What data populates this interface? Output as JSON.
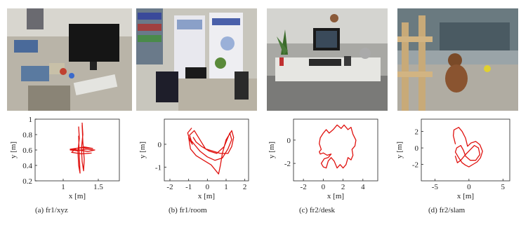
{
  "figure": {
    "panels": [
      {
        "id": "a",
        "caption": "(a) fr1/xyz",
        "chart_data": {
          "type": "line",
          "xlabel": "x [m]",
          "ylabel": "y [m]",
          "xlim": [
            0.6,
            1.8
          ],
          "ylim": [
            0.2,
            1.0
          ],
          "xticks": [
            1,
            1.5
          ],
          "yticks": [
            0.2,
            0.4,
            0.6,
            0.8,
            1
          ],
          "xtick_labels": [
            "1",
            "1.5"
          ],
          "ytick_labels": [
            "0.2",
            "0.4",
            "0.6",
            "0.8",
            "1"
          ],
          "series": [
            {
              "color": "#e0120f",
              "x": [
                1.1,
                1.2,
                1.32,
                1.45,
                1.35,
                1.22,
                1.1,
                1.25,
                1.42,
                1.3,
                1.18,
                1.12,
                1.26,
                1.4
              ],
              "y": [
                0.6,
                0.59,
                0.61,
                0.6,
                0.58,
                0.6,
                0.61,
                0.63,
                0.62,
                0.64,
                0.62,
                0.57,
                0.55,
                0.56
              ]
            },
            {
              "color": "#e0120f",
              "x": [
                1.27,
                1.28,
                1.26,
                1.27,
                1.29,
                1.3,
                1.28,
                1.27
              ],
              "y": [
                0.95,
                0.8,
                0.62,
                0.45,
                0.33,
                0.48,
                0.7,
                0.92
              ]
            },
            {
              "color": "#e0120f",
              "x": [
                1.22,
                1.23,
                1.21,
                1.22,
                1.24,
                1.23,
                1.22
              ],
              "y": [
                0.9,
                0.75,
                0.58,
                0.4,
                0.3,
                0.52,
                0.78
              ]
            }
          ]
        }
      },
      {
        "id": "b",
        "caption": "(b) fr1/room",
        "chart_data": {
          "type": "line",
          "xlabel": "x [m]",
          "ylabel": "y [m]",
          "xlim": [
            -2.3,
            2.2
          ],
          "ylim": [
            -1.6,
            1.1
          ],
          "xticks": [
            -2,
            -1,
            0,
            1,
            2
          ],
          "yticks": [
            -1,
            0
          ],
          "xtick_labels": [
            "-2",
            "-1",
            "0",
            "1",
            "2"
          ],
          "ytick_labels": [
            "-1",
            "0"
          ],
          "series": [
            {
              "color": "#e0120f",
              "x": [
                -0.85,
                -1.05,
                -0.95,
                -0.8,
                -0.95,
                -0.7,
                -0.4,
                -0.1,
                0.3,
                0.7,
                1.1,
                1.3,
                1.4,
                1.3,
                1.0,
                0.8,
                0.7,
                0.6,
                0.2,
                -0.2,
                -0.6,
                -0.9,
                -1.0,
                -0.8,
                -0.4,
                0.0,
                0.4,
                0.8,
                1.1,
                1.3,
                1.2,
                0.9,
                0.5,
                0.1,
                -0.3,
                -0.6,
                -0.75
              ],
              "y": [
                0.7,
                0.5,
                0.2,
                0.0,
                0.4,
                0.6,
                0.2,
                -0.2,
                -0.3,
                -0.4,
                -0.4,
                -0.1,
                0.3,
                0.6,
                0.2,
                -0.4,
                -0.9,
                -1.3,
                -0.9,
                -0.7,
                -0.5,
                -0.2,
                0.3,
                0.1,
                -0.3,
                -0.55,
                -0.7,
                -0.6,
                -0.2,
                0.2,
                0.5,
                -0.1,
                -0.4,
                -0.3,
                -0.1,
                0.1,
                0.3
              ]
            }
          ]
        }
      },
      {
        "id": "c",
        "caption": "(c) fr2/desk",
        "chart_data": {
          "type": "line",
          "xlabel": "x [m]",
          "ylabel": "y [m]",
          "xlim": [
            -3,
            5.5
          ],
          "ylim": [
            -3.5,
            1.8
          ],
          "xticks": [
            -2,
            0,
            2,
            4
          ],
          "yticks": [
            -2,
            0
          ],
          "xtick_labels": [
            "-2",
            "0",
            "2",
            "4"
          ],
          "ytick_labels": [
            "-2",
            "0"
          ],
          "series": [
            {
              "color": "#e0120f",
              "x": [
                -0.2,
                -0.4,
                -0.3,
                0.0,
                0.3,
                0.6,
                1.0,
                1.4,
                1.8,
                2.1,
                2.5,
                2.8,
                3.0,
                3.3,
                3.2,
                2.9,
                3.0,
                2.8,
                2.5,
                2.3,
                2.0,
                1.7,
                1.4,
                1.1,
                0.8,
                0.5,
                0.3,
                0.0,
                -0.2,
                0.1,
                0.5,
                0.8,
                0.4,
                0.0,
                -0.3,
                -0.4,
                -0.2
              ],
              "y": [
                -0.8,
                -0.3,
                0.2,
                0.6,
                0.9,
                0.6,
                0.9,
                1.3,
                1.0,
                1.3,
                0.9,
                1.1,
                0.5,
                0.0,
                -0.5,
                -0.8,
                -1.3,
                -1.7,
                -1.5,
                -2.1,
                -2.4,
                -2.1,
                -2.4,
                -1.8,
                -1.5,
                -1.8,
                -2.4,
                -2.3,
                -2.0,
                -1.6,
                -1.5,
                -1.2,
                -1.3,
                -1.1,
                -1.2,
                -1.0,
                -0.8
              ]
            }
          ]
        }
      },
      {
        "id": "d",
        "caption": "(d) fr2/slam",
        "chart_data": {
          "type": "line",
          "xlabel": "x [m]",
          "ylabel": "y [m]",
          "xlim": [
            -7,
            6
          ],
          "ylim": [
            -4,
            3.5
          ],
          "xticks": [
            -5,
            0,
            5
          ],
          "yticks": [
            -2,
            0,
            2
          ],
          "xtick_labels": [
            "-5",
            "0",
            "5"
          ],
          "ytick_labels": [
            "-2",
            "0",
            "2"
          ],
          "series": [
            {
              "color": "#e0120f",
              "x": [
                -2.0,
                -2.3,
                -2.2,
                -1.5,
                -1.0,
                -0.5,
                -0.2,
                0.3,
                1.0,
                1.6,
                2.0,
                1.7,
                1.2,
                0.6,
                0.0,
                -0.5,
                -1.0,
                -1.5,
                -2.0,
                -1.8,
                -1.2,
                -0.8,
                -0.5,
                0.2,
                1.0,
                1.6,
                1.4,
                0.8,
                0.2,
                -0.5,
                -1.2,
                -1.7,
                -2.0
              ],
              "y": [
                0.5,
                1.5,
                2.2,
                2.5,
                2.0,
                1.2,
                0.2,
                0.6,
                0.8,
                0.4,
                -0.4,
                -1.2,
                -1.7,
                -2.0,
                -2.3,
                -2.1,
                -1.8,
                -1.2,
                -0.5,
                0.0,
                0.3,
                -0.3,
                -1.0,
                -1.5,
                -1.5,
                -0.8,
                0.0,
                0.3,
                -0.2,
                -0.8,
                -1.5,
                -1.8,
                -1.0
              ]
            }
          ]
        }
      }
    ]
  }
}
